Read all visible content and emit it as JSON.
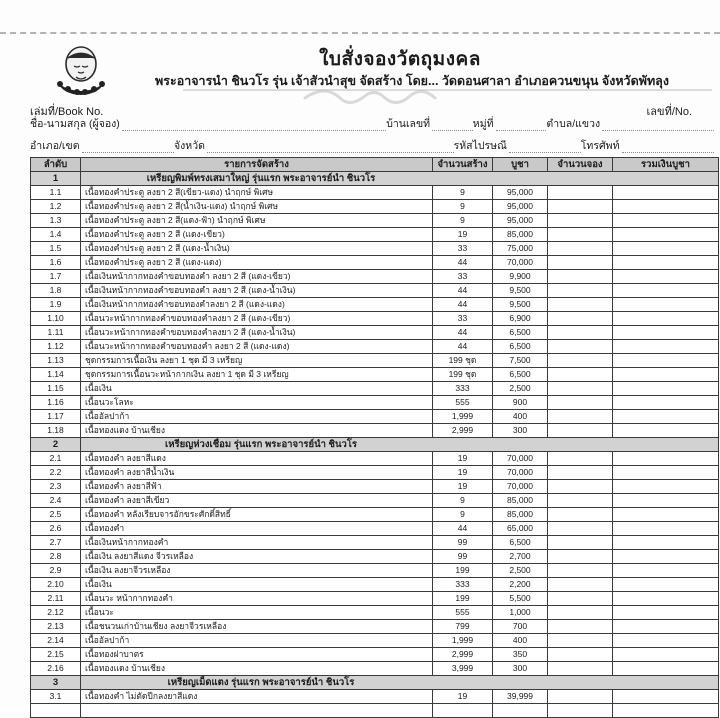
{
  "page": {
    "title": "ใบสั่งจองวัตถุมงคล",
    "subtitle": "พระอาจารนำ ชินวโร รุ่น เจ้าสัวนำสุข จัดสร้าง โดย... วัดดอนศาลา อำเภอควนขนุน จังหวัดพัทลุง",
    "book_no_label": "เล่มที่/Book No.",
    "doc_no_label": "เลขที่/No.",
    "icons": {
      "logo": "monk-portrait-emblem",
      "flourish": "decorative-flourish"
    },
    "colors": {
      "band_gray": "#c9c9c9",
      "section_gray": "#d2d2d2",
      "border": "#3a3a3a"
    }
  },
  "form": {
    "line1": {
      "f1": "ชื่อ-นามสกุล (ผู้จอง)",
      "f2": "บ้านเลขที่",
      "f3": "หมู่ที่",
      "f4": "ตำบล/แขวง"
    },
    "line2": {
      "f1": "อำเภอ/เขต",
      "f2": "จังหวัด",
      "f3": "รหัสไปรษณี",
      "f4": "โทรศัพท์"
    }
  },
  "table": {
    "columns": [
      "ลำดับ",
      "รายการจัดสร้าง",
      "จำนวนสร้าง",
      "บูชา",
      "จำนวนจอง",
      "รวมเงินบูชา"
    ],
    "sections": [
      {
        "no": "1",
        "title": "เหรียญพิมพ์ทรงเสมาใหญ่ รุ่นแรก พระอาจารย์นำ ชินวโร",
        "rows": [
          [
            "1.1",
            "เนื้อทองคำประตู ลงยา 2 สี(เขียว-แดง) นำฤกษ์ พิเศษ",
            "9",
            "95,000"
          ],
          [
            "1.2",
            "เนื้อทองคำประตู ลงยา 2 สี(น้ำเงิน-แดง) นำฤกษ์ พิเศษ",
            "9",
            "95,000"
          ],
          [
            "1.3",
            "เนื้อทองคำประตู ลงยา 2 สี(แดง-ฟ้า) นำฤกษ์ พิเศษ",
            "9",
            "95,000"
          ],
          [
            "1.4",
            "เนื้อทองคำประตู ลงยา 2 สี (แดง-เขียว)",
            "19",
            "85,000"
          ],
          [
            "1.5",
            "เนื้อทองคำประตู ลงยา 2 สี (แดง-น้ำเงิน)",
            "33",
            "75,000"
          ],
          [
            "1.6",
            "เนื้อทองคำประตู ลงยา 2 สี (แดง-แดง)",
            "44",
            "70,000"
          ],
          [
            "1.7",
            "เนื้อเงินหน้ากากทองคำขอบทองคำ ลงยา 2 สี (แดง-เขียว)",
            "33",
            "9,900"
          ],
          [
            "1.8",
            "เนื้อเงินหน้ากากทองคำขอบทองคำ ลงยา 2 สี (แดง-น้ำเงิน)",
            "44",
            "9,500"
          ],
          [
            "1.9",
            "เนื้อเงินหน้ากากทองคำขอบทองคำลงยา 2 สี (แดง-แดง)",
            "44",
            "9,500"
          ],
          [
            "1.10",
            "เนื้อนวะหน้ากากทองคำขอบทองคำลงยา 2 สี (แดง-เขียว)",
            "33",
            "6,900"
          ],
          [
            "1.11",
            "เนื้อนวะหน้ากากทองคำขอบทองคำลงยา 2 สี (แดง-น้ำเงิน)",
            "44",
            "6,500"
          ],
          [
            "1.12",
            "เนื้อนวะหน้ากากทองคำขอบทองคำ ลงยา 2 สี (แดง-แดง)",
            "44",
            "6,500"
          ],
          [
            "1.13",
            "ชุดกรรมการเนื้อเงิน ลงยา 1 ชุด มี 3 เหรียญ",
            "199 ชุด",
            "7,500"
          ],
          [
            "1.14",
            "ชุดกรรมการเนื้อนวะหน้ากากเงิน ลงยา 1 ชุด มี 3 เหรียญ",
            "199 ชุด",
            "6,500"
          ],
          [
            "1.15",
            "เนื้อเงิน",
            "333",
            "2,500"
          ],
          [
            "1.16",
            "เนื้อนวะโลหะ",
            "555",
            "900"
          ],
          [
            "1.17",
            "เนื้ออัลปาก้า",
            "1,999",
            "400"
          ],
          [
            "1.18",
            "เนื้อทองแดง บ้านเชียง",
            "2,999",
            "300"
          ]
        ]
      },
      {
        "no": "2",
        "title": "เหรียญห่วงเชื่อม รุ่นแรก พระอาจารย์นำ ชินวโร",
        "rows": [
          [
            "2.1",
            "เนื้อทองคำ ลงยาสีแดง",
            "19",
            "70,000"
          ],
          [
            "2.2",
            "เนื้อทองคำ ลงยาสีน้ำเงิน",
            "19",
            "70,000"
          ],
          [
            "2.3",
            "เนื้อทองคำ ลงยาสีฟ้า",
            "19",
            "70,000"
          ],
          [
            "2.4",
            "เนื้อทองคำ ลงยาสีเขียว",
            "9",
            "85,000"
          ],
          [
            "2.5",
            "เนื้อทองคำ หลังเรียบจารอักขระศักดิ์สิทธิ์",
            "9",
            "85,000"
          ],
          [
            "2.6",
            "เนื้อทองคำ",
            "44",
            "65,000"
          ],
          [
            "2.7",
            "เนื้อเงินหน้ากากทองคำ",
            "99",
            "6,500"
          ],
          [
            "2.8",
            "เนื้อเงิน ลงยาสีแดง จีวรเหลือง",
            "99",
            "2,700"
          ],
          [
            "2.9",
            "เนื้อเงิน ลงยาจีวรเหลือง",
            "199",
            "2,500"
          ],
          [
            "2.10",
            "เนื้อเงิน",
            "333",
            "2,200"
          ],
          [
            "2.11",
            "เนื้อนวะ หน้ากากทองคำ",
            "199",
            "5,500"
          ],
          [
            "2.12",
            "เนื้อนวะ",
            "555",
            "1,000"
          ],
          [
            "2.13",
            "เนื้อชนวนเก่าบ้านเชียง ลงยาจีวรเหลือง",
            "799",
            "700"
          ],
          [
            "2.14",
            "เนื้ออัลปาก้า",
            "1,999",
            "400"
          ],
          [
            "2.15",
            "เนื้อทองฝาบาตร",
            "2,999",
            "350"
          ],
          [
            "2.16",
            "เนื้อทองแดง บ้านเชียง",
            "3,999",
            "300"
          ]
        ]
      },
      {
        "no": "3",
        "title": "เหรียญเม็ดแตง รุ่นแรก พระอาจารย์นำ ชินวโร",
        "rows": [
          [
            "3.1",
            "เนื้อทองคำ ไม่ตัดปีกลงยาสีแดง",
            "19",
            "39,999"
          ]
        ]
      }
    ]
  }
}
